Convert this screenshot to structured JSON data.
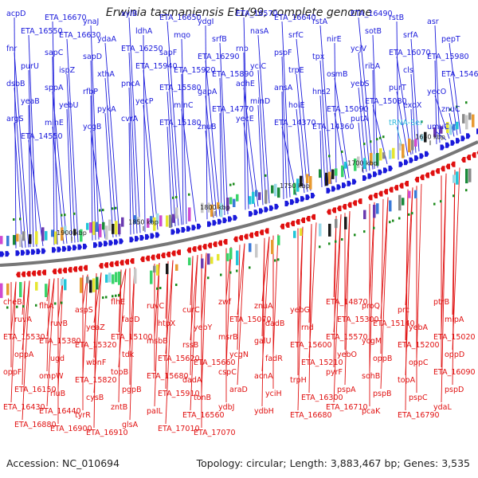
{
  "title": "Erwinia tasmaniensis Et1/99, complete genome",
  "footer": {
    "accession": "Accession: NC_010694",
    "summary": "Topology: circular; Length: 3,883,467 bp; Genes: 3,535"
  },
  "colors": {
    "forward": "#1a1adb",
    "reverse": "#e01010",
    "rna": "#33bbdd",
    "backbone": "#777777",
    "cds_dark": "#1a1a1a"
  },
  "ticks": [
    "1650 kbp",
    "1700 kbp",
    "1750 kbp",
    "1800 kbp",
    "1850 kbp",
    "1900 kbp"
  ],
  "forward_genes": [
    "acpD",
    "ETA_16670",
    "ynaJ",
    "xylB",
    "ETA_16650",
    "ydgI",
    "ETA_16570",
    "ETA_16640",
    "rstA",
    "ETA_16490",
    "rstB",
    "asr",
    "ETA_16550",
    "ETA_16630",
    "ydaA",
    "ldhA",
    "mqo",
    "srfB",
    "nasA",
    "srfC",
    "nirE",
    "sotB",
    "srfA",
    "pepT",
    "fnr",
    "sapC",
    "sapD",
    "ETA_16250",
    "sapF",
    "ETA_16290",
    "rnb",
    "pspF",
    "tpx",
    "ycjV",
    "ETA_16070",
    "ETA_15980",
    "purU",
    "ispZ",
    "xthA",
    "ETA_15940",
    "ETA_15920",
    "ETA_15890",
    "yciC",
    "trpE",
    "osmB",
    "ribA",
    "cls",
    "ETA_15460",
    "dsbB",
    "sppA",
    "rfbP",
    "pncA",
    "ETA_15580",
    "gapA",
    "adhE",
    "ansA",
    "hns2",
    "yebS",
    "purT",
    "yecO",
    "yeaB",
    "yebU",
    "pykA",
    "yecP",
    "minC",
    "ETA_14770",
    "minD",
    "holE",
    "ETA_15090",
    "ETA_15080",
    "exoX",
    "znuC",
    "argS",
    "minE",
    "ycgB",
    "cvrA",
    "ETA_15180",
    "znuB",
    "yecE",
    "ETA_14370",
    "ETA_14360",
    "putA",
    "tRNA-Ser",
    "umuC",
    "ETA_14550"
  ],
  "reverse_genes": [
    "cheB",
    "flhA",
    "aspS",
    "flhE",
    "ruvC",
    "curC",
    "zwf",
    "znuA",
    "yebG",
    "ETA_14870",
    "proQ",
    "prc",
    "ptrB",
    "ruvA",
    "ruvB",
    "yeaZ",
    "fadD",
    "htpX",
    "yebY",
    "ETA_15070",
    "dadB",
    "rnd",
    "ETA_15300",
    "ETA_15140",
    "yebA",
    "mipA",
    "ETA_15530",
    "ETA_15380",
    "ETA_15320",
    "ETA_15100",
    "msbB",
    "rssB",
    "msrB",
    "galU",
    "ETA_15600",
    "ETA_15570",
    "ycgM",
    "ETA_15200",
    "ETA_15020",
    "oppA",
    "ugd",
    "wbnF",
    "tdk",
    "ETA_15620",
    "ETA_15660",
    "ycgN",
    "fadR",
    "ETA_15210",
    "yebO",
    "oppB",
    "oppC",
    "oppD",
    "oppF",
    "ompW",
    "ETA_15820",
    "topB",
    "ETA_15680",
    "dadA",
    "cspC",
    "acnA",
    "trpH",
    "pyrF",
    "sohB",
    "topA",
    "ETA_16090",
    "ETA_16150",
    "rluB",
    "cysB",
    "pgpB",
    "ETA_15910",
    "tonB",
    "araD",
    "yciH",
    "ETA_16300",
    "pspA",
    "pspB",
    "pspC",
    "pspD",
    "ETA_16430",
    "ETA_16440",
    "tyrR",
    "zntB",
    "paIL",
    "ETA_16560",
    "ydbJ",
    "ydbH",
    "ETA_16680",
    "ETA_16710",
    "pcaK",
    "ETA_16790",
    "ydaL",
    "ETA_16880",
    "ETA_16900",
    "ETA_16910",
    "glsA",
    "ETA_17010",
    "ETA_17070"
  ]
}
